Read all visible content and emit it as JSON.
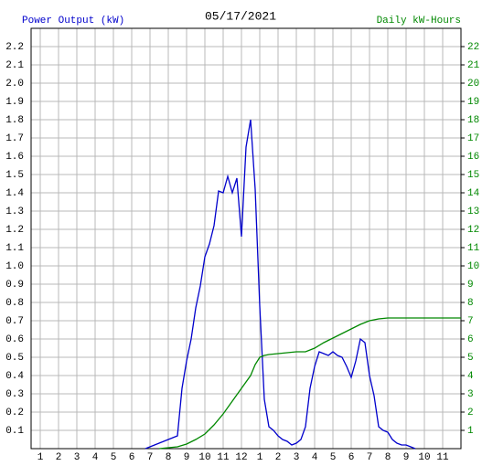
{
  "chart_data": {
    "type": "line",
    "title": "05/17/2021",
    "y_label": "Power Output (kW)",
    "y2_label": "Daily kW-Hours",
    "xlim": [
      0.5,
      24
    ],
    "xticks": [
      1,
      2,
      3,
      4,
      5,
      6,
      7,
      8,
      9,
      10,
      11,
      12,
      {
        "value": 13,
        "label": "1"
      },
      {
        "value": 14,
        "label": "2"
      },
      {
        "value": 15,
        "label": "3"
      },
      {
        "value": 16,
        "label": "4"
      },
      {
        "value": 17,
        "label": "5"
      },
      {
        "value": 18,
        "label": "6"
      },
      {
        "value": 19,
        "label": "7"
      },
      {
        "value": 20,
        "label": "8"
      },
      {
        "value": 21,
        "label": "9"
      },
      {
        "value": 22,
        "label": "10"
      },
      {
        "value": 23,
        "label": "11"
      }
    ],
    "ylim": [
      0,
      2.3
    ],
    "yticks": [
      0.1,
      0.2,
      0.3,
      0.4,
      0.5,
      0.6,
      0.7,
      0.8,
      0.9,
      {
        "value": 1,
        "label": "1.0"
      },
      1.1,
      1.2,
      1.3,
      1.4,
      1.5,
      1.6,
      1.7,
      1.8,
      1.9,
      {
        "value": 2,
        "label": "2.0"
      },
      2.1,
      2.2
    ],
    "y2lim": [
      0,
      23
    ],
    "y2ticks": [
      1,
      2,
      3,
      4,
      5,
      6,
      7,
      8,
      9,
      10,
      11,
      12,
      13,
      14,
      15,
      16,
      17,
      18,
      19,
      20,
      21,
      22
    ],
    "grid": true,
    "series": [
      {
        "name": "Power Output (kW)",
        "color": "#0000cc",
        "x": [
          6.75,
          7,
          7.25,
          7.5,
          7.75,
          8,
          8.25,
          8.5,
          8.75,
          9,
          9.25,
          9.5,
          9.75,
          10,
          10.25,
          10.5,
          10.75,
          11,
          11.25,
          11.5,
          11.75,
          12,
          12.25,
          12.5,
          12.75,
          13,
          13.25,
          13.5,
          13.75,
          14,
          14.25,
          14.5,
          14.75,
          15,
          15.25,
          15.5,
          15.75,
          16,
          16.25,
          16.5,
          16.75,
          17,
          17.25,
          17.5,
          17.75,
          18,
          18.25,
          18.5,
          18.75,
          19,
          19.25,
          19.5,
          19.75,
          20,
          20.25,
          20.5,
          20.75,
          21,
          21.25,
          21.5
        ],
        "values": [
          0,
          0.01,
          0.02,
          0.03,
          0.04,
          0.05,
          0.06,
          0.07,
          0.33,
          0.48,
          0.6,
          0.77,
          0.89,
          1.05,
          1.12,
          1.22,
          1.41,
          1.4,
          1.49,
          1.4,
          1.48,
          1.16,
          1.65,
          1.8,
          1.42,
          0.78,
          0.27,
          0.12,
          0.1,
          0.07,
          0.05,
          0.04,
          0.02,
          0.03,
          0.05,
          0.12,
          0.33,
          0.45,
          0.53,
          0.52,
          0.51,
          0.53,
          0.51,
          0.5,
          0.45,
          0.39,
          0.48,
          0.6,
          0.58,
          0.4,
          0.29,
          0.12,
          0.1,
          0.09,
          0.05,
          0.03,
          0.02,
          0.02,
          0.01,
          0
        ]
      },
      {
        "name": "Daily kW-Hours",
        "color": "#008800",
        "axis": "y2",
        "x": [
          7.5,
          8,
          8.5,
          9,
          9.5,
          10,
          10.5,
          11,
          11.5,
          12,
          12.5,
          12.75,
          13,
          13.25,
          13.5,
          14,
          14.5,
          15,
          15.5,
          16,
          16.5,
          17,
          17.5,
          18,
          18.5,
          19,
          19.5,
          20,
          21,
          24
        ],
        "values": [
          0,
          0.05,
          0.1,
          0.25,
          0.5,
          0.8,
          1.3,
          1.9,
          2.6,
          3.3,
          4.0,
          4.6,
          5.0,
          5.1,
          5.15,
          5.2,
          5.25,
          5.3,
          5.3,
          5.5,
          5.8,
          6.05,
          6.3,
          6.55,
          6.8,
          7.0,
          7.1,
          7.15,
          7.15,
          7.15
        ]
      }
    ]
  }
}
